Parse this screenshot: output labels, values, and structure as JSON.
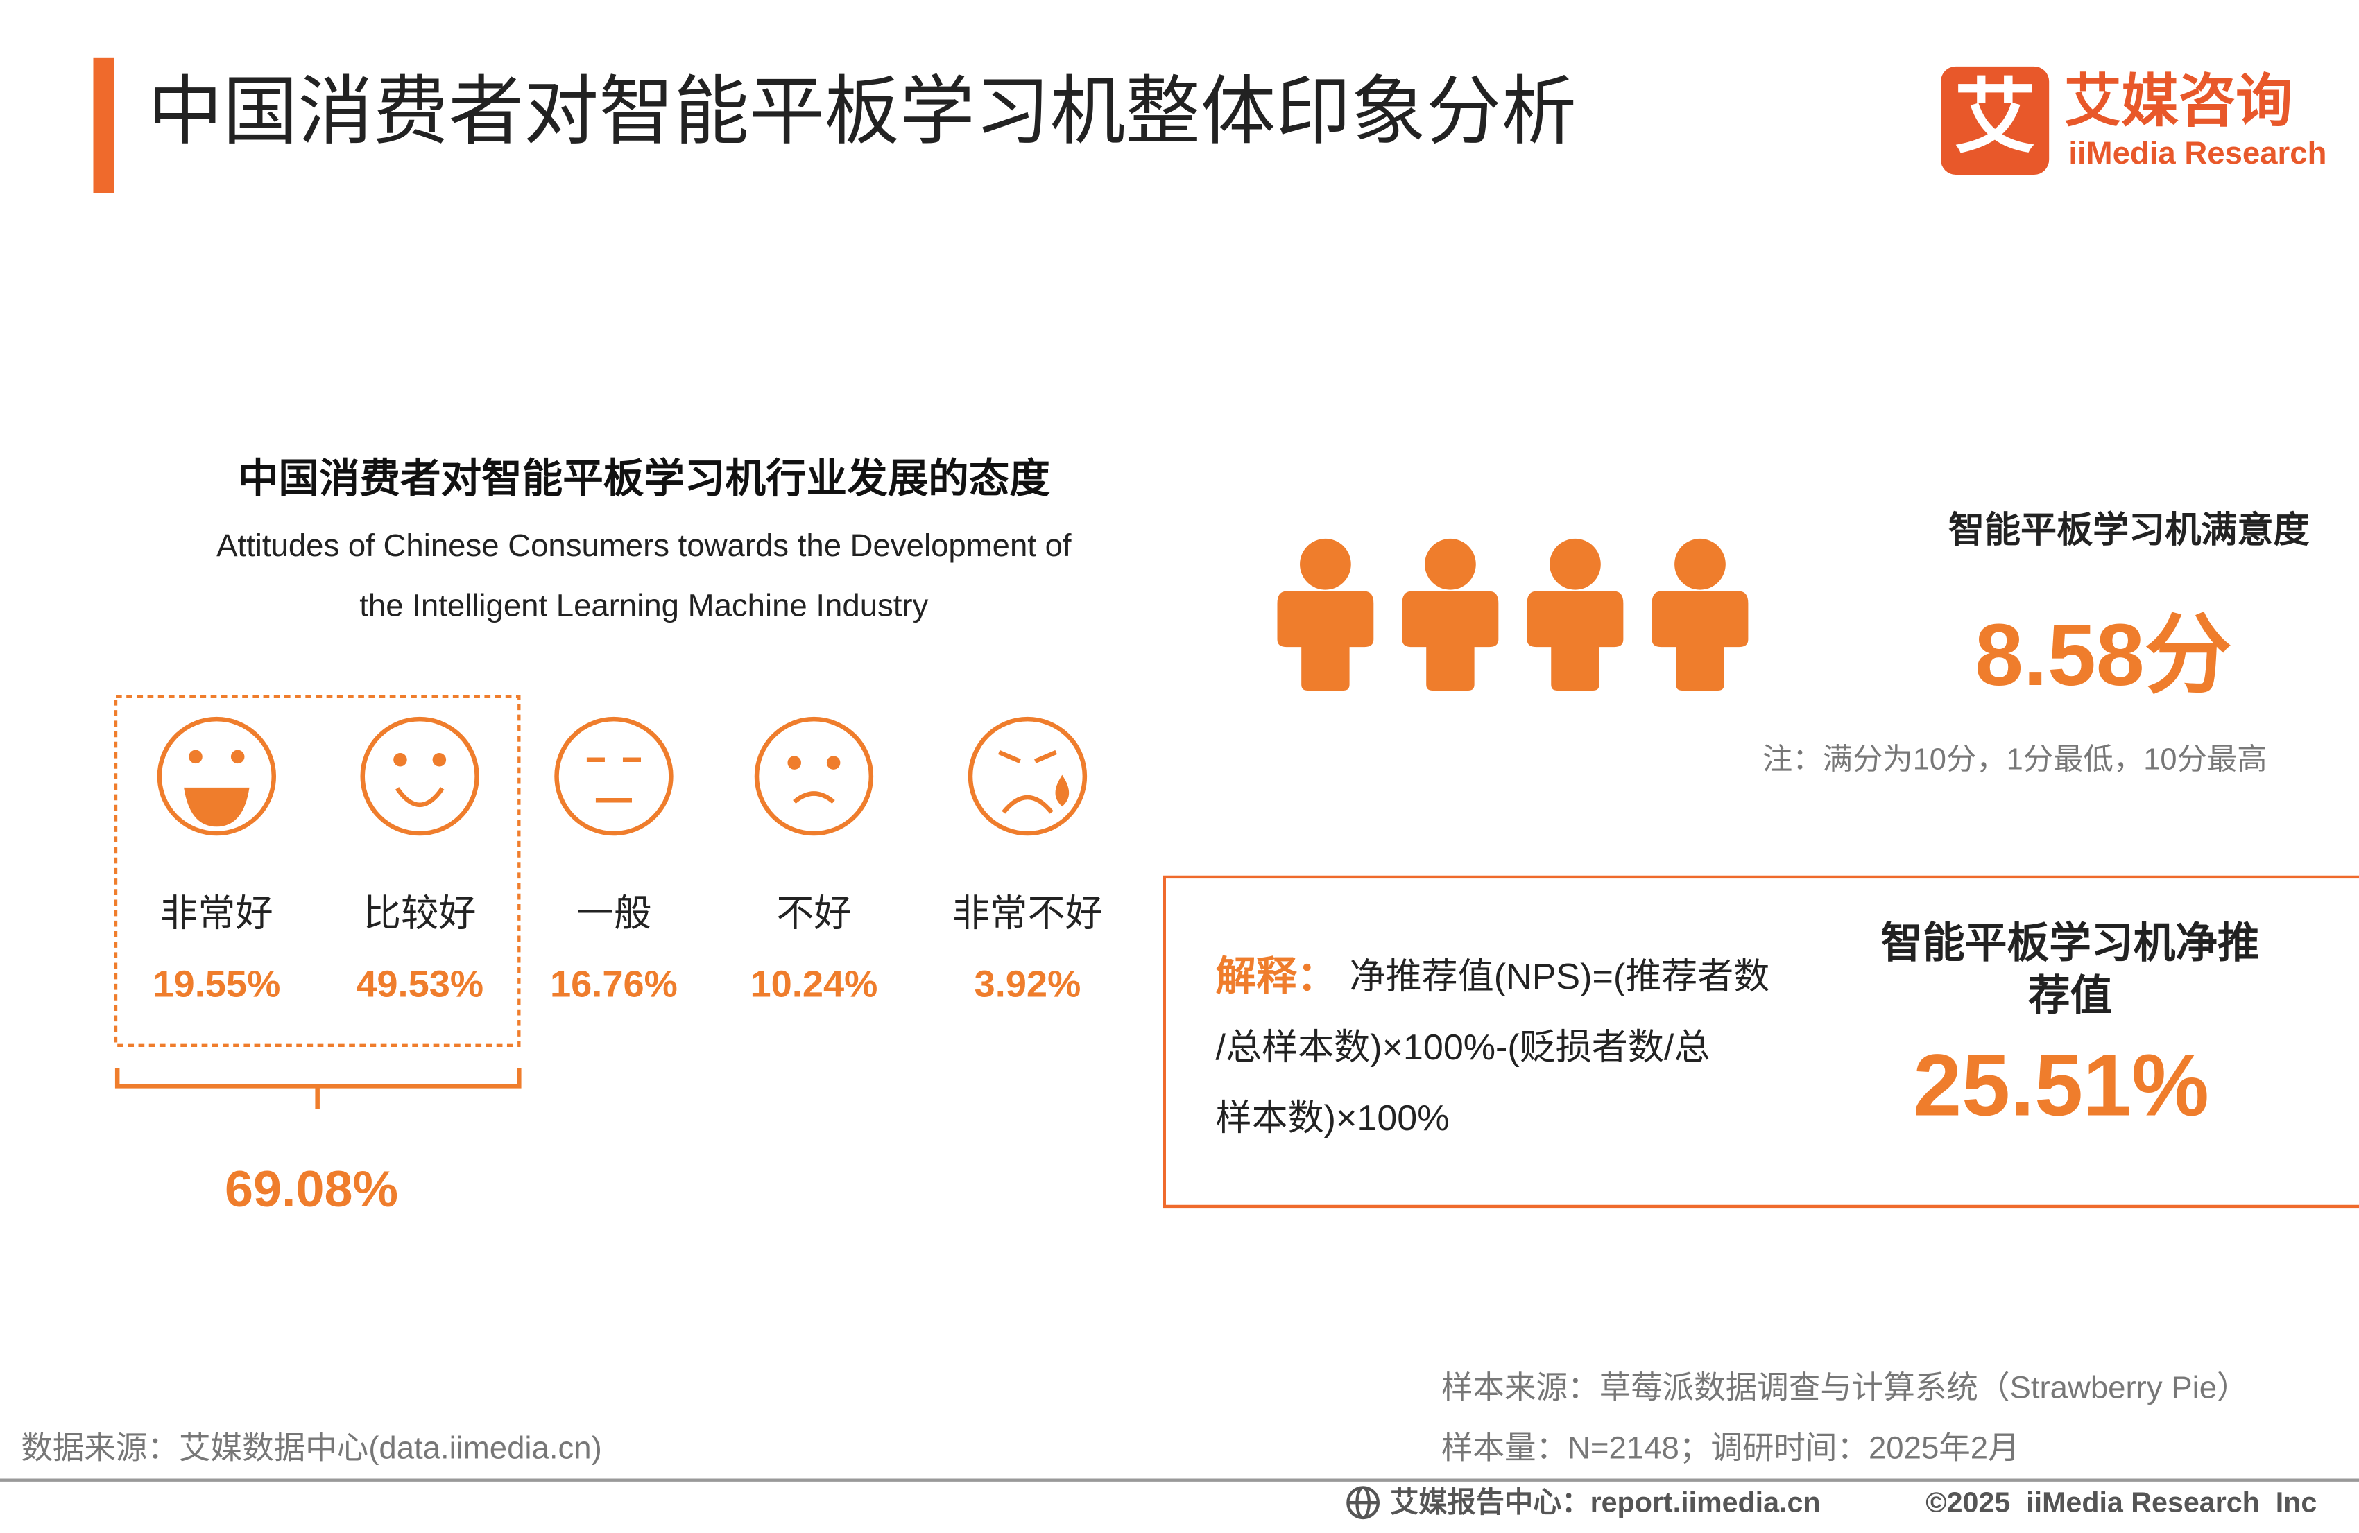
{
  "header": {
    "title": "中国消费者对智能平板学习机整体印象分析",
    "logo_cn": "艾媒咨询",
    "logo_en": "iiMedia Research",
    "logo_mark": "艾"
  },
  "attitude": {
    "title": "中国消费者对智能平板学习机行业发展的态度",
    "subtitle_lines": [
      "Attitudes of Chinese Consumers towards the Development of",
      "the Intelligent Learning Machine Industry"
    ],
    "items": [
      {
        "label": "非常好",
        "value": "19.55%"
      },
      {
        "label": "比较好",
        "value": "49.53%"
      },
      {
        "label": "一般",
        "value": "16.76%"
      },
      {
        "label": "不好",
        "value": "10.24%"
      },
      {
        "label": "非常不好",
        "value": "3.92%"
      }
    ],
    "positive_total": "69.08%"
  },
  "satisfaction": {
    "title": "智能平板学习机满意度",
    "score": "8.58分",
    "note": "注：满分为10分，1分最低，10分最高"
  },
  "nps": {
    "explain_label": "解释：",
    "explain_lines": [
      "净推荐值(NPS)=(推荐者数",
      "/总样本数)×100%-(贬损者数/总",
      "样本数)×100%"
    ],
    "title_lines": [
      "智能平板学习机净推",
      "荐值"
    ],
    "value": "25.51%"
  },
  "footer": {
    "source": "数据来源：艾媒数据中心(data.iimedia.cn)",
    "sample_source": "样本来源：草莓派数据调查与计算系统（Strawberry Pie）",
    "sample_size": "样本量：N=2148；调研时间：2025年2月",
    "report_center": "艾媒报告中心：report.iimedia.cn",
    "copyright": "©2025  iiMedia Research  Inc"
  }
}
